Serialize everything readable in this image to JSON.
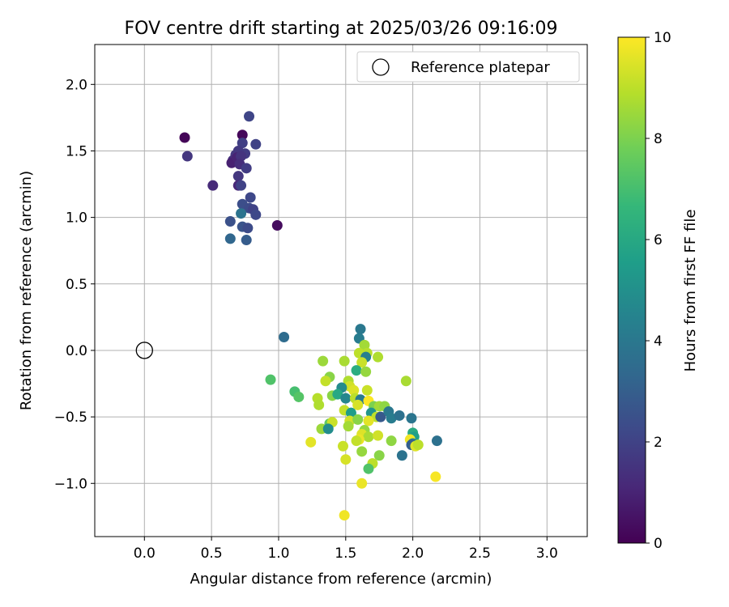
{
  "chart_data": {
    "type": "scatter",
    "title": "FOV centre drift starting at 2025/03/26 09:16:09",
    "xlabel": "Angular distance from reference (arcmin)",
    "ylabel": "Rotation from reference (arcmin)",
    "xlim": [
      -0.37,
      3.3
    ],
    "ylim": [
      -1.4,
      2.3
    ],
    "xticks": [
      0.0,
      0.5,
      1.0,
      1.5,
      2.0,
      2.5,
      3.0
    ],
    "xtick_labels": [
      "0.0",
      "0.5",
      "1.0",
      "1.5",
      "2.0",
      "2.5",
      "3.0"
    ],
    "yticks": [
      -1.0,
      -0.5,
      0.0,
      0.5,
      1.0,
      1.5,
      2.0
    ],
    "ytick_labels": [
      "−1.0",
      "−0.5",
      "0.0",
      "0.5",
      "1.0",
      "1.5",
      "2.0"
    ],
    "grid": true,
    "legend": {
      "placement": "top-right",
      "entries": [
        "Reference platepar"
      ]
    },
    "reference_point": {
      "x": 0.0,
      "y": 0.0,
      "marker": "open-circle",
      "color": "#000000"
    },
    "colorbar": {
      "label": "Hours from first FF file",
      "min": 0,
      "max": 10,
      "ticks": [
        0,
        2,
        4,
        6,
        8,
        10
      ],
      "tick_labels": [
        "0",
        "2",
        "4",
        "6",
        "8",
        "10"
      ],
      "colormap": "viridis",
      "stops": [
        "#440154",
        "#482878",
        "#3e4989",
        "#31688e",
        "#26828e",
        "#1f9e89",
        "#35b779",
        "#6ece58",
        "#b5de2b",
        "#fde725"
      ]
    },
    "points": [
      {
        "x": 0.3,
        "y": 1.6,
        "c": 0.1
      },
      {
        "x": 0.73,
        "y": 1.62,
        "c": 0.2
      },
      {
        "x": 0.32,
        "y": 1.46,
        "c": 1.6
      },
      {
        "x": 0.51,
        "y": 1.24,
        "c": 1.2
      },
      {
        "x": 0.99,
        "y": 0.94,
        "c": 0.3
      },
      {
        "x": 0.78,
        "y": 1.76,
        "c": 2.1
      },
      {
        "x": 0.83,
        "y": 1.55,
        "c": 2.0
      },
      {
        "x": 0.73,
        "y": 1.56,
        "c": 1.9
      },
      {
        "x": 0.75,
        "y": 1.48,
        "c": 1.8
      },
      {
        "x": 0.7,
        "y": 1.5,
        "c": 1.7
      },
      {
        "x": 0.68,
        "y": 1.47,
        "c": 1.6
      },
      {
        "x": 0.66,
        "y": 1.43,
        "c": 1.4
      },
      {
        "x": 0.65,
        "y": 1.41,
        "c": 0.9
      },
      {
        "x": 0.69,
        "y": 1.45,
        "c": 1.0
      },
      {
        "x": 0.72,
        "y": 1.46,
        "c": 1.5
      },
      {
        "x": 0.71,
        "y": 1.4,
        "c": 1.3
      },
      {
        "x": 0.76,
        "y": 1.37,
        "c": 1.8
      },
      {
        "x": 0.7,
        "y": 1.31,
        "c": 1.6
      },
      {
        "x": 0.7,
        "y": 1.24,
        "c": 1.1
      },
      {
        "x": 0.72,
        "y": 1.24,
        "c": 2.0
      },
      {
        "x": 0.79,
        "y": 1.15,
        "c": 2.2
      },
      {
        "x": 0.73,
        "y": 1.1,
        "c": 2.4
      },
      {
        "x": 0.78,
        "y": 1.07,
        "c": 2.3
      },
      {
        "x": 0.81,
        "y": 1.06,
        "c": 2.0
      },
      {
        "x": 0.83,
        "y": 1.02,
        "c": 2.2
      },
      {
        "x": 0.72,
        "y": 1.03,
        "c": 3.8
      },
      {
        "x": 0.64,
        "y": 0.97,
        "c": 2.5
      },
      {
        "x": 0.73,
        "y": 0.93,
        "c": 2.6
      },
      {
        "x": 0.77,
        "y": 0.92,
        "c": 2.3
      },
      {
        "x": 0.64,
        "y": 0.84,
        "c": 3.3
      },
      {
        "x": 0.76,
        "y": 0.83,
        "c": 2.9
      },
      {
        "x": 1.04,
        "y": 0.1,
        "c": 3.5
      },
      {
        "x": 1.61,
        "y": 0.16,
        "c": 4.0
      },
      {
        "x": 1.6,
        "y": 0.09,
        "c": 4.2
      },
      {
        "x": 1.64,
        "y": 0.04,
        "c": 8.6
      },
      {
        "x": 1.66,
        "y": -0.02,
        "c": 8.9
      },
      {
        "x": 1.6,
        "y": -0.02,
        "c": 9.0
      },
      {
        "x": 1.65,
        "y": -0.05,
        "c": 4.3
      },
      {
        "x": 1.74,
        "y": -0.05,
        "c": 8.8
      },
      {
        "x": 1.62,
        "y": -0.09,
        "c": 9.2
      },
      {
        "x": 1.49,
        "y": -0.08,
        "c": 8.7
      },
      {
        "x": 1.33,
        "y": -0.08,
        "c": 8.5
      },
      {
        "x": 1.58,
        "y": -0.15,
        "c": 6.2
      },
      {
        "x": 1.65,
        "y": -0.16,
        "c": 8.4
      },
      {
        "x": 0.94,
        "y": -0.22,
        "c": 7.2
      },
      {
        "x": 1.38,
        "y": -0.2,
        "c": 8.2
      },
      {
        "x": 1.35,
        "y": -0.23,
        "c": 9.1
      },
      {
        "x": 1.52,
        "y": -0.23,
        "c": 8.8
      },
      {
        "x": 1.95,
        "y": -0.23,
        "c": 8.7
      },
      {
        "x": 1.53,
        "y": -0.27,
        "c": 9.3
      },
      {
        "x": 1.47,
        "y": -0.28,
        "c": 4.8
      },
      {
        "x": 1.56,
        "y": -0.3,
        "c": 9.5
      },
      {
        "x": 1.66,
        "y": -0.3,
        "c": 9.2
      },
      {
        "x": 1.12,
        "y": -0.31,
        "c": 7.0
      },
      {
        "x": 1.15,
        "y": -0.35,
        "c": 7.3
      },
      {
        "x": 1.29,
        "y": -0.36,
        "c": 8.9
      },
      {
        "x": 1.4,
        "y": -0.34,
        "c": 8.2
      },
      {
        "x": 1.44,
        "y": -0.33,
        "c": 6.0
      },
      {
        "x": 1.5,
        "y": -0.36,
        "c": 4.6
      },
      {
        "x": 1.57,
        "y": -0.36,
        "c": 9.0
      },
      {
        "x": 1.61,
        "y": -0.37,
        "c": 4.1
      },
      {
        "x": 1.67,
        "y": -0.38,
        "c": 10.0
      },
      {
        "x": 1.3,
        "y": -0.41,
        "c": 8.8
      },
      {
        "x": 1.59,
        "y": -0.41,
        "c": 9.4
      },
      {
        "x": 1.71,
        "y": -0.42,
        "c": 8.0
      },
      {
        "x": 1.75,
        "y": -0.42,
        "c": 8.6
      },
      {
        "x": 1.79,
        "y": -0.42,
        "c": 8.3
      },
      {
        "x": 1.49,
        "y": -0.45,
        "c": 9.1
      },
      {
        "x": 1.54,
        "y": -0.47,
        "c": 5.5
      },
      {
        "x": 1.69,
        "y": -0.47,
        "c": 5.2
      },
      {
        "x": 1.73,
        "y": -0.5,
        "c": 9.0
      },
      {
        "x": 1.76,
        "y": -0.5,
        "c": 2.8
      },
      {
        "x": 1.82,
        "y": -0.46,
        "c": 4.0
      },
      {
        "x": 1.84,
        "y": -0.51,
        "c": 4.2
      },
      {
        "x": 1.9,
        "y": -0.49,
        "c": 3.7
      },
      {
        "x": 1.99,
        "y": -0.51,
        "c": 3.9
      },
      {
        "x": 1.53,
        "y": -0.53,
        "c": 9.3
      },
      {
        "x": 1.59,
        "y": -0.52,
        "c": 8.2
      },
      {
        "x": 1.67,
        "y": -0.53,
        "c": 9.6
      },
      {
        "x": 1.38,
        "y": -0.55,
        "c": 7.5
      },
      {
        "x": 1.4,
        "y": -0.54,
        "c": 9.2
      },
      {
        "x": 1.52,
        "y": -0.57,
        "c": 8.6
      },
      {
        "x": 1.64,
        "y": -0.6,
        "c": 8.4
      },
      {
        "x": 1.32,
        "y": -0.59,
        "c": 8.5
      },
      {
        "x": 1.37,
        "y": -0.59,
        "c": 4.9
      },
      {
        "x": 1.62,
        "y": -0.63,
        "c": 9.5
      },
      {
        "x": 1.67,
        "y": -0.65,
        "c": 8.7
      },
      {
        "x": 1.74,
        "y": -0.64,
        "c": 9.3
      },
      {
        "x": 1.6,
        "y": -0.67,
        "c": 9.7
      },
      {
        "x": 1.58,
        "y": -0.68,
        "c": 9.1
      },
      {
        "x": 1.24,
        "y": -0.69,
        "c": 9.6
      },
      {
        "x": 1.84,
        "y": -0.68,
        "c": 8.3
      },
      {
        "x": 2.0,
        "y": -0.62,
        "c": 6.1
      },
      {
        "x": 2.01,
        "y": -0.65,
        "c": 5.6
      },
      {
        "x": 1.98,
        "y": -0.67,
        "c": 9.8
      },
      {
        "x": 2.0,
        "y": -0.7,
        "c": 4.3
      },
      {
        "x": 1.99,
        "y": -0.71,
        "c": 3.0
      },
      {
        "x": 2.02,
        "y": -0.72,
        "c": 9.5
      },
      {
        "x": 2.04,
        "y": -0.71,
        "c": 9.0
      },
      {
        "x": 2.18,
        "y": -0.68,
        "c": 3.7
      },
      {
        "x": 1.48,
        "y": -0.72,
        "c": 9.2
      },
      {
        "x": 1.62,
        "y": -0.76,
        "c": 8.4
      },
      {
        "x": 1.75,
        "y": -0.79,
        "c": 8.2
      },
      {
        "x": 1.92,
        "y": -0.79,
        "c": 3.8
      },
      {
        "x": 1.5,
        "y": -0.82,
        "c": 9.4
      },
      {
        "x": 1.7,
        "y": -0.85,
        "c": 9.0
      },
      {
        "x": 1.67,
        "y": -0.89,
        "c": 7.2
      },
      {
        "x": 2.17,
        "y": -0.95,
        "c": 9.9
      },
      {
        "x": 1.62,
        "y": -1.0,
        "c": 9.7
      },
      {
        "x": 1.49,
        "y": -1.24,
        "c": 9.8
      }
    ]
  }
}
